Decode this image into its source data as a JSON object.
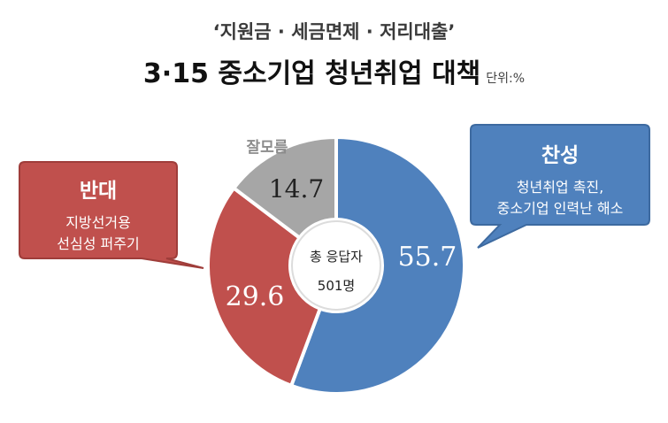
{
  "chart_data": {
    "type": "donut",
    "subtitle": "‘지원금 · 세금면제 · 저리대출’",
    "title": "3·15 중소기업 청년취업 대책",
    "unit": "단위:%",
    "center_label": "총 응답자",
    "center_value": "501명",
    "slices": [
      {
        "label": "찬성",
        "value": 55.7,
        "value_label": "55.7",
        "color": "#4f81bd",
        "note_lines": [
          "청년취업 촉진,",
          "중소기업 인력난 해소"
        ]
      },
      {
        "label": "반대",
        "value": 29.6,
        "value_label": "29.6",
        "color": "#c0504d",
        "note_lines": [
          "지방선거용",
          "선심성 퍼주기"
        ]
      },
      {
        "label": "잘모름",
        "value": 14.7,
        "value_label": "14.7",
        "color": "#a6a6a6",
        "note_lines": []
      }
    ]
  },
  "colors": {
    "agree_box": "#4f81bd",
    "oppose_box": "#c0504d",
    "unknown_label": "#8c8c8c"
  }
}
